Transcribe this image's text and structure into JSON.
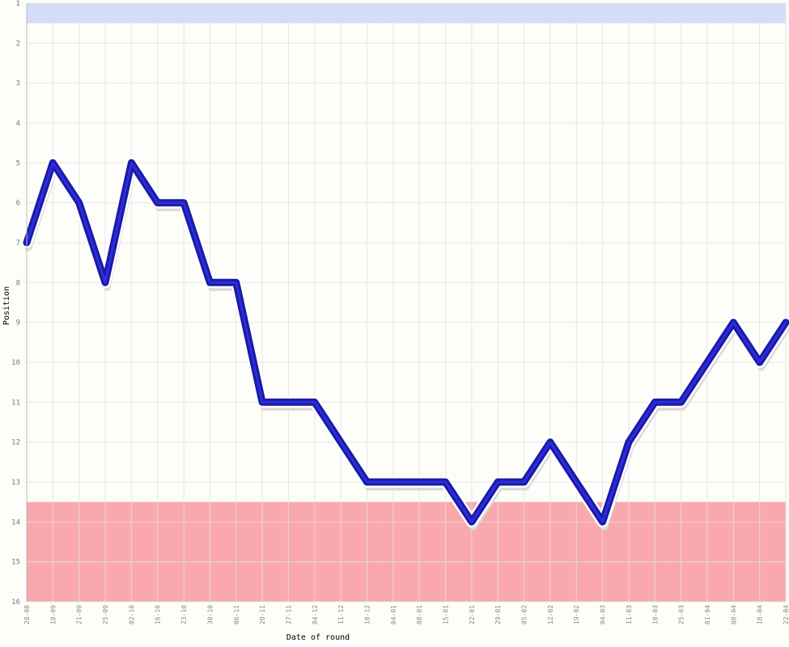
{
  "chart_data": {
    "type": "line",
    "xlabel": "Date of round",
    "ylabel": "Position",
    "ylim": [
      1,
      16
    ],
    "y_inverted": true,
    "y_ticks": [
      "1",
      "2",
      "3",
      "4",
      "5",
      "6",
      "7",
      "8",
      "9",
      "10",
      "11",
      "12",
      "13",
      "14",
      "15",
      "16"
    ],
    "categories": [
      "28-08",
      "18-09",
      "21-09",
      "25-09",
      "02-10",
      "16-10",
      "23-10",
      "30-10",
      "06-11",
      "20-11",
      "27-11",
      "04-12",
      "11-12",
      "18-12",
      "04-01",
      "08-01",
      "15-01",
      "22-01",
      "29-01",
      "05-02",
      "12-02",
      "19-02",
      "04-03",
      "11-03",
      "18-03",
      "25-03",
      "01-04",
      "08-04",
      "18-04",
      "22-04"
    ],
    "series": [
      {
        "values": [
          7,
          5,
          6,
          8,
          5,
          6,
          6,
          8,
          8,
          11,
          11,
          11,
          12,
          13,
          13,
          13,
          13,
          14,
          13,
          13,
          12,
          13,
          14,
          12,
          11,
          11,
          10,
          9,
          10,
          9
        ]
      }
    ],
    "bands": [
      {
        "from": 1,
        "to": 1.5,
        "color": "#d4dcf8"
      },
      {
        "from": 13.5,
        "to": 16,
        "color": "#f9a9ae"
      }
    ],
    "line_color": "#1a1aa8",
    "grid": true,
    "legend": "none"
  }
}
